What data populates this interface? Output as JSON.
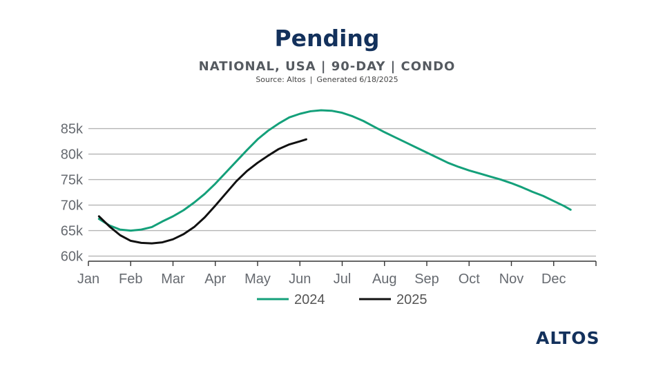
{
  "header": {
    "title": "Pending",
    "subtitle": "NATIONAL, USA | 90-DAY | CONDO",
    "source": "Source: Altos",
    "generated": "Generated 6/18/2025"
  },
  "logo": {
    "text": "ALTOS"
  },
  "colors": {
    "series_2024": "#14a07a",
    "series_2025": "#111111",
    "grid": "#b3b3b3",
    "title": "#13315c"
  },
  "chart_data": {
    "type": "line",
    "title": "Pending",
    "subtitle": "NATIONAL, USA | 90-DAY | CONDO",
    "x_unit": "month",
    "xlim": [
      0,
      12
    ],
    "ylim": [
      59000,
      89000
    ],
    "xticks": [
      "Jan",
      "Feb",
      "Mar",
      "Apr",
      "May",
      "Jun",
      "Jul",
      "Aug",
      "Sep",
      "Oct",
      "Nov",
      "Dec"
    ],
    "yticks": [
      60000,
      65000,
      70000,
      75000,
      80000,
      85000
    ],
    "ytick_labels": [
      "60k",
      "65k",
      "70k",
      "75k",
      "80k",
      "85k"
    ],
    "grid": "horizontal",
    "legend": "bottom",
    "series": [
      {
        "name": "2024",
        "color": "#14a07a",
        "points": [
          [
            0.25,
            67300
          ],
          [
            0.5,
            66000
          ],
          [
            0.75,
            65200
          ],
          [
            1.0,
            65000
          ],
          [
            1.25,
            65200
          ],
          [
            1.5,
            65700
          ],
          [
            1.75,
            66800
          ],
          [
            2.0,
            67800
          ],
          [
            2.25,
            69000
          ],
          [
            2.5,
            70500
          ],
          [
            2.75,
            72200
          ],
          [
            3.0,
            74200
          ],
          [
            3.25,
            76400
          ],
          [
            3.5,
            78600
          ],
          [
            3.75,
            80800
          ],
          [
            4.0,
            82900
          ],
          [
            4.25,
            84600
          ],
          [
            4.5,
            86000
          ],
          [
            4.75,
            87200
          ],
          [
            5.0,
            87900
          ],
          [
            5.25,
            88400
          ],
          [
            5.5,
            88600
          ],
          [
            5.75,
            88500
          ],
          [
            6.0,
            88100
          ],
          [
            6.25,
            87400
          ],
          [
            6.5,
            86500
          ],
          [
            6.75,
            85400
          ],
          [
            7.0,
            84300
          ],
          [
            7.25,
            83300
          ],
          [
            7.5,
            82300
          ],
          [
            7.75,
            81300
          ],
          [
            8.0,
            80300
          ],
          [
            8.25,
            79300
          ],
          [
            8.5,
            78300
          ],
          [
            8.75,
            77500
          ],
          [
            9.0,
            76800
          ],
          [
            9.25,
            76200
          ],
          [
            9.5,
            75600
          ],
          [
            9.75,
            75000
          ],
          [
            10.0,
            74300
          ],
          [
            10.25,
            73500
          ],
          [
            10.5,
            72600
          ],
          [
            10.75,
            71800
          ],
          [
            11.0,
            70800
          ],
          [
            11.25,
            69800
          ],
          [
            11.4,
            69100
          ]
        ]
      },
      {
        "name": "2025",
        "color": "#111111",
        "points": [
          [
            0.25,
            67800
          ],
          [
            0.5,
            65800
          ],
          [
            0.75,
            64100
          ],
          [
            1.0,
            63000
          ],
          [
            1.25,
            62600
          ],
          [
            1.5,
            62500
          ],
          [
            1.75,
            62700
          ],
          [
            2.0,
            63300
          ],
          [
            2.25,
            64300
          ],
          [
            2.5,
            65700
          ],
          [
            2.75,
            67600
          ],
          [
            3.0,
            69900
          ],
          [
            3.25,
            72300
          ],
          [
            3.5,
            74700
          ],
          [
            3.75,
            76700
          ],
          [
            4.0,
            78300
          ],
          [
            4.25,
            79700
          ],
          [
            4.5,
            81000
          ],
          [
            4.75,
            81900
          ],
          [
            5.0,
            82500
          ],
          [
            5.15,
            82900
          ]
        ]
      }
    ]
  }
}
